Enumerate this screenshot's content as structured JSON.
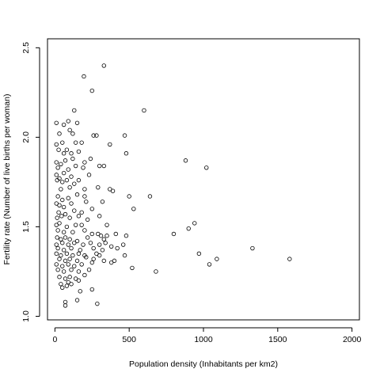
{
  "chart_data": {
    "type": "scatter",
    "title": "",
    "xlabel": "Population density (Inhabitants per km2)",
    "ylabel": "Fertility rate (Number of live births per woman)",
    "xlim": [
      -50,
      2050
    ],
    "ylim": [
      0.98,
      2.55
    ],
    "x_ticks": [
      0,
      500,
      1000,
      1500,
      2000
    ],
    "x_tick_labels": [
      "0",
      "500",
      "1000",
      "1500",
      "2000"
    ],
    "y_ticks": [
      1.0,
      1.5,
      2.0,
      2.5
    ],
    "y_tick_labels": [
      "1.0",
      "1.5",
      "2.0",
      "2.5"
    ],
    "grid": false,
    "legend": "none",
    "marker": "open-circle",
    "points": [
      [
        195,
        2.34
      ],
      [
        330,
        2.4
      ],
      [
        250,
        2.26
      ],
      [
        130,
        2.15
      ],
      [
        600,
        2.15
      ],
      [
        10,
        2.08
      ],
      [
        60,
        2.07
      ],
      [
        90,
        2.09
      ],
      [
        150,
        2.08
      ],
      [
        100,
        2.04
      ],
      [
        120,
        2.02
      ],
      [
        260,
        2.01
      ],
      [
        280,
        2.01
      ],
      [
        470,
        2.01
      ],
      [
        30,
        2.02
      ],
      [
        10,
        1.96
      ],
      [
        50,
        1.97
      ],
      [
        140,
        1.97
      ],
      [
        180,
        1.97
      ],
      [
        370,
        1.96
      ],
      [
        25,
        1.93
      ],
      [
        60,
        1.91
      ],
      [
        80,
        1.93
      ],
      [
        110,
        1.91
      ],
      [
        160,
        1.92
      ],
      [
        480,
        1.91
      ],
      [
        10,
        1.86
      ],
      [
        40,
        1.85
      ],
      [
        70,
        1.87
      ],
      [
        120,
        1.88
      ],
      [
        200,
        1.86
      ],
      [
        240,
        1.88
      ],
      [
        20,
        1.83
      ],
      [
        90,
        1.82
      ],
      [
        140,
        1.84
      ],
      [
        190,
        1.83
      ],
      [
        300,
        1.84
      ],
      [
        330,
        1.84
      ],
      [
        880,
        1.87
      ],
      [
        1020,
        1.83
      ],
      [
        10,
        1.79
      ],
      [
        60,
        1.8
      ],
      [
        110,
        1.78
      ],
      [
        230,
        1.79
      ],
      [
        30,
        1.77
      ],
      [
        15,
        1.76
      ],
      [
        50,
        1.75
      ],
      [
        80,
        1.76
      ],
      [
        130,
        1.74
      ],
      [
        160,
        1.76
      ],
      [
        40,
        1.71
      ],
      [
        100,
        1.72
      ],
      [
        200,
        1.71
      ],
      [
        290,
        1.72
      ],
      [
        370,
        1.71
      ],
      [
        390,
        1.7
      ],
      [
        20,
        1.67
      ],
      [
        50,
        1.65
      ],
      [
        90,
        1.66
      ],
      [
        150,
        1.68
      ],
      [
        200,
        1.67
      ],
      [
        500,
        1.67
      ],
      [
        640,
        1.67
      ],
      [
        10,
        1.63
      ],
      [
        30,
        1.62
      ],
      [
        60,
        1.61
      ],
      [
        110,
        1.63
      ],
      [
        210,
        1.64
      ],
      [
        320,
        1.64
      ],
      [
        25,
        1.58
      ],
      [
        70,
        1.57
      ],
      [
        130,
        1.59
      ],
      [
        180,
        1.58
      ],
      [
        250,
        1.6
      ],
      [
        530,
        1.6
      ],
      [
        15,
        1.55
      ],
      [
        45,
        1.56
      ],
      [
        100,
        1.55
      ],
      [
        160,
        1.56
      ],
      [
        220,
        1.54
      ],
      [
        300,
        1.56
      ],
      [
        10,
        1.51
      ],
      [
        30,
        1.52
      ],
      [
        80,
        1.5
      ],
      [
        140,
        1.51
      ],
      [
        180,
        1.51
      ],
      [
        350,
        1.51
      ],
      [
        940,
        1.52
      ],
      [
        900,
        1.49
      ],
      [
        20,
        1.48
      ],
      [
        60,
        1.47
      ],
      [
        120,
        1.47
      ],
      [
        200,
        1.48
      ],
      [
        250,
        1.46
      ],
      [
        290,
        1.46
      ],
      [
        310,
        1.45
      ],
      [
        410,
        1.46
      ],
      [
        480,
        1.45
      ],
      [
        800,
        1.46
      ],
      [
        15,
        1.44
      ],
      [
        40,
        1.43
      ],
      [
        70,
        1.44
      ],
      [
        100,
        1.43
      ],
      [
        150,
        1.42
      ],
      [
        220,
        1.44
      ],
      [
        330,
        1.43
      ],
      [
        350,
        1.45
      ],
      [
        10,
        1.4
      ],
      [
        50,
        1.41
      ],
      [
        90,
        1.4
      ],
      [
        130,
        1.41
      ],
      [
        190,
        1.4
      ],
      [
        240,
        1.41
      ],
      [
        300,
        1.4
      ],
      [
        340,
        1.41
      ],
      [
        460,
        1.4
      ],
      [
        380,
        1.39
      ],
      [
        20,
        1.38
      ],
      [
        60,
        1.37
      ],
      [
        110,
        1.38
      ],
      [
        170,
        1.37
      ],
      [
        260,
        1.38
      ],
      [
        320,
        1.37
      ],
      [
        420,
        1.38
      ],
      [
        1330,
        1.38
      ],
      [
        10,
        1.35
      ],
      [
        40,
        1.34
      ],
      [
        80,
        1.35
      ],
      [
        120,
        1.34
      ],
      [
        160,
        1.35
      ],
      [
        200,
        1.34
      ],
      [
        280,
        1.35
      ],
      [
        300,
        1.34
      ],
      [
        470,
        1.34
      ],
      [
        970,
        1.35
      ],
      [
        30,
        1.32
      ],
      [
        70,
        1.31
      ],
      [
        100,
        1.32
      ],
      [
        150,
        1.31
      ],
      [
        210,
        1.33
      ],
      [
        260,
        1.32
      ],
      [
        330,
        1.31
      ],
      [
        1090,
        1.32
      ],
      [
        1580,
        1.32
      ],
      [
        10,
        1.29
      ],
      [
        50,
        1.28
      ],
      [
        90,
        1.29
      ],
      [
        130,
        1.28
      ],
      [
        180,
        1.29
      ],
      [
        250,
        1.3
      ],
      [
        380,
        1.3
      ],
      [
        400,
        1.31
      ],
      [
        1040,
        1.29
      ],
      [
        20,
        1.26
      ],
      [
        60,
        1.25
      ],
      [
        110,
        1.26
      ],
      [
        160,
        1.25
      ],
      [
        230,
        1.26
      ],
      [
        520,
        1.27
      ],
      [
        680,
        1.25
      ],
      [
        30,
        1.22
      ],
      [
        70,
        1.21
      ],
      [
        100,
        1.22
      ],
      [
        140,
        1.21
      ],
      [
        200,
        1.23
      ],
      [
        160,
        1.2
      ],
      [
        40,
        1.18
      ],
      [
        80,
        1.17
      ],
      [
        110,
        1.18
      ],
      [
        50,
        1.16
      ],
      [
        90,
        1.19
      ],
      [
        250,
        1.15
      ],
      [
        170,
        1.14
      ],
      [
        150,
        1.09
      ],
      [
        70,
        1.08
      ],
      [
        70,
        1.06
      ],
      [
        285,
        1.07
      ]
    ]
  }
}
